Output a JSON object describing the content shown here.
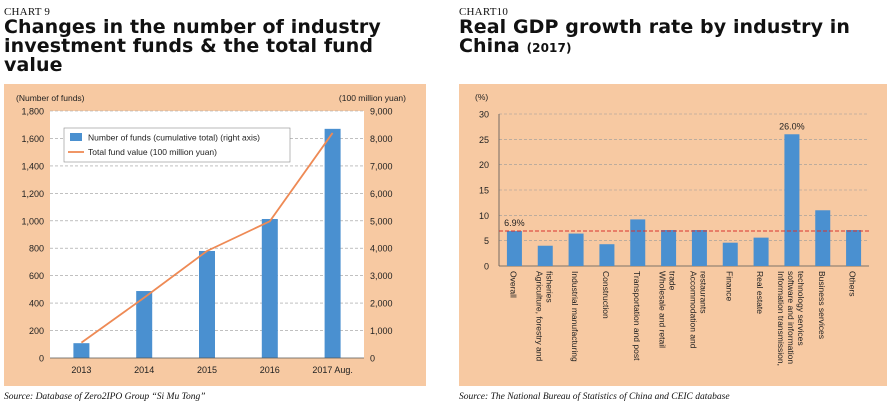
{
  "left_panel": {
    "chart_label": "CHART 9",
    "title_line1": "Changes in the number of industry",
    "title_line2": "investment funds & the total fund",
    "title_line3": "value",
    "source": "Source: Database of Zero2IPO Group “Si Mu Tong”"
  },
  "right_panel": {
    "chart_label": "CHART10",
    "title_line1": "Real GDP growth rate by industry in",
    "title_line2": "China",
    "title_sub": "(2017)",
    "source": "Source: The National Bureau of Statistics of China and CEIC database"
  },
  "colors": {
    "frame": "#f7c9a2",
    "bar": "#4a90d0",
    "line": "#ee8a55",
    "grid": "#9a9a9a",
    "ref_line": "#d8322e"
  },
  "chart_data": [
    {
      "type": "bar",
      "categories": [
        "2013",
        "2014",
        "2015",
        "2016",
        "2017 Aug."
      ],
      "series": [
        {
          "name": "Number of funds (cumulative total) (right axis)",
          "type": "bar",
          "axis": "left",
          "values": [
            108,
            488,
            780,
            1013,
            1670
          ]
        },
        {
          "name": "Total fund value (100 million yuan)",
          "type": "line",
          "axis": "right",
          "values": [
            560,
            2200,
            3900,
            4980,
            8200
          ]
        }
      ],
      "left_axis_label": "(Number of funds)",
      "right_axis_label": "(100 million yuan)",
      "ylim_left": [
        0,
        1800
      ],
      "ylim_right": [
        0,
        9000
      ],
      "left_ticks": [
        "0",
        "200",
        "400",
        "600",
        "800",
        "1,000",
        "1,200",
        "1,400",
        "1,600",
        "1,800"
      ],
      "right_ticks": [
        "0",
        "1,000",
        "2,000",
        "3,000",
        "4,000",
        "5,000",
        "6,000",
        "7,000",
        "8,000",
        "9,000"
      ],
      "grid": true,
      "legend_position": "top-left"
    },
    {
      "type": "bar",
      "categories": [
        "Overall",
        "Agriculture, forestry and fisheries",
        "Industrial manufacturing",
        "Construction",
        "Transportation and post",
        "Wholesale and retail trade",
        "Accommodation and restaurants",
        "Finance",
        "Real estate",
        "Information transmission, software and information technology services",
        "Business services",
        "Others"
      ],
      "category_lines": [
        [
          "Overall"
        ],
        [
          "Agriculture, forestry and",
          "fisheries"
        ],
        [
          "Industrial manufacturing"
        ],
        [
          "Construction"
        ],
        [
          "Transportation and post"
        ],
        [
          "Wholesale and retail",
          "trade"
        ],
        [
          "Accommodation and",
          "restaurants"
        ],
        [
          "Finance"
        ],
        [
          "Real estate"
        ],
        [
          "Information transmission,",
          "software and information",
          "technology services"
        ],
        [
          "Business services"
        ],
        [
          "Others"
        ]
      ],
      "values": [
        6.9,
        4.0,
        6.4,
        4.3,
        9.2,
        7.1,
        7.1,
        4.6,
        5.6,
        26.0,
        11.0,
        7.1
      ],
      "data_labels": {
        "0": "6.9%",
        "9": "26.0%"
      },
      "reference_line": 6.9,
      "ylabel": "(%)",
      "ylim": [
        0,
        30
      ],
      "y_ticks": [
        "0",
        "5",
        "10",
        "15",
        "20",
        "25",
        "30"
      ],
      "grid": true
    }
  ]
}
